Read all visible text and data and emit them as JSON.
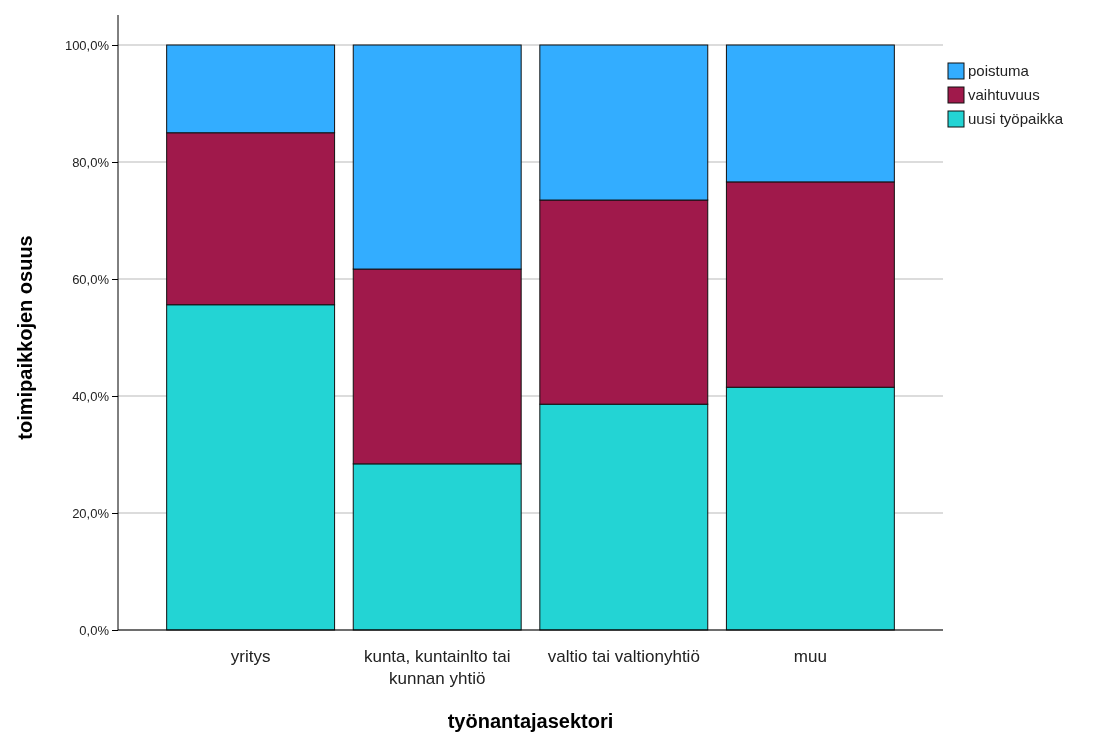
{
  "chart_data": {
    "type": "bar",
    "stacked": true,
    "xlabel": "työnantajasektori",
    "ylabel": "toimipaikkojen osuus",
    "categories": [
      "yritys",
      "kunta, kuntainlto tai kunnan yhtiö",
      "valtio tai valtionyhtiö",
      "muu"
    ],
    "series": [
      {
        "name": "uusi työpaikka",
        "color": "#23d4d4",
        "values": [
          55.6,
          28.4,
          38.6,
          41.5
        ]
      },
      {
        "name": "vaihtuvuus",
        "color": "#a0194b",
        "values": [
          29.4,
          33.3,
          34.9,
          35.1
        ]
      },
      {
        "name": "poistuma",
        "color": "#33adff",
        "values": [
          15.0,
          38.3,
          26.5,
          23.4
        ]
      }
    ],
    "ylim": [
      0,
      100
    ],
    "yticks": [
      {
        "value": 0,
        "label": "0,0%"
      },
      {
        "value": 20,
        "label": "20,0%"
      },
      {
        "value": 40,
        "label": "40,0%"
      },
      {
        "value": 60,
        "label": "60,0%"
      },
      {
        "value": 80,
        "label": "80,0%"
      },
      {
        "value": 100,
        "label": "100,0%"
      }
    ],
    "grid": "y",
    "legend": "top right"
  }
}
